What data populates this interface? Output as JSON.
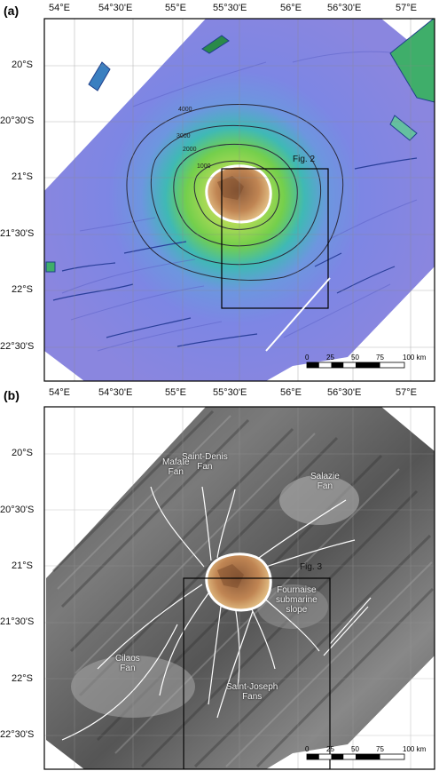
{
  "figure": {
    "panel_a": {
      "letter": "(a)",
      "top_ticks": [
        "54°E",
        "54°30'E",
        "55°E",
        "55°30'E",
        "56°E",
        "56°30'E",
        "57°E"
      ],
      "left_ticks": [
        "20°S",
        "20°30'S",
        "21°S",
        "21°30'S",
        "22°S",
        "22°30'S"
      ],
      "box_label": "Fig. 2",
      "contours": [
        "4000",
        "3000",
        "2000",
        "1000"
      ],
      "scale": {
        "ticks": [
          "0",
          "25",
          "50",
          "75",
          "100 km"
        ]
      }
    },
    "panel_b": {
      "letter": "(b)",
      "top_ticks": [
        "54°E",
        "54°30'E",
        "55°E",
        "55°30'E",
        "56°E",
        "56°30'E",
        "57°E"
      ],
      "left_ticks": [
        "20°S",
        "20°30'S",
        "21°S",
        "21°30'S",
        "22°S",
        "22°30'S"
      ],
      "box_label": "Fig. 3",
      "features": {
        "mafate": "Mafate\nFan",
        "saint_denis": "Saint-Denis\nFan",
        "salazie": "Salazie\nFan",
        "fournaise": "Fournaise\nsubmarine\nslope",
        "cilaos": "Cilaos\nFan",
        "saint_joseph": "Saint-Joseph\nFans"
      },
      "scale": {
        "ticks": [
          "0",
          "25",
          "50",
          "75",
          "100 km"
        ]
      }
    },
    "colors": {
      "deep_sea": "#7e84e6",
      "slope_mid": "#3fbcc0",
      "slope_green": "#7fd24a",
      "shallow": "#cfe05a",
      "island": "#b87a4a",
      "backscatter": "#6a6a6a",
      "frame": "#000000"
    }
  }
}
